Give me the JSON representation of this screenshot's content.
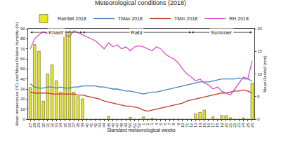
{
  "chart_data": {
    "type": "bar_line",
    "title": "Meteorological conditions (2018)",
    "x_label": "Standard meteorological weeks",
    "y_label": "Mean temperature (°C) and Mean Relative humidity (%)",
    "y2_label": "Mean Rainfall (mm)",
    "categories": [
      "27",
      "28",
      "29",
      "30",
      "31",
      "32",
      "33",
      "34",
      "35",
      "36",
      "37",
      "38",
      "39",
      "40",
      "41",
      "42",
      "43",
      "44",
      "45",
      "46",
      "47",
      "48",
      "49",
      "50",
      "51",
      "52",
      "1",
      "2",
      "3",
      "4",
      "5",
      "6",
      "7",
      "8",
      "9",
      "10",
      "11",
      "12",
      "13",
      "14",
      "15",
      "16",
      "17",
      "18",
      "19",
      "20",
      "21",
      "22",
      "23",
      "24",
      "25",
      "26"
    ],
    "series": [
      {
        "name": "Rainfall 2018",
        "type": "bar",
        "axis": "y2",
        "color": "#e8e81c",
        "values": [
          7,
          16.5,
          15,
          4,
          10,
          12,
          8.5,
          6,
          19.5,
          19.5,
          6,
          5,
          4.5,
          0,
          0,
          0,
          0,
          0,
          0.6,
          0,
          0,
          0,
          0,
          0.4,
          0,
          0,
          0.5,
          0,
          0.2,
          0,
          0,
          0,
          0,
          0,
          0,
          0,
          0,
          0,
          1.2,
          1.5,
          2,
          0,
          0.5,
          0,
          0.8,
          0.8,
          0.3,
          0,
          0,
          0.3,
          0,
          8
        ]
      },
      {
        "name": "TMax 2018",
        "type": "line",
        "color": "#3f7fc0",
        "values": [
          35,
          32,
          31,
          31,
          32,
          32,
          31,
          32,
          31,
          31,
          32,
          32,
          33,
          33,
          33,
          33,
          32,
          32,
          31,
          30,
          30,
          29,
          28,
          28,
          27,
          26,
          25,
          26,
          27,
          27,
          28,
          29,
          30,
          31,
          32,
          33,
          34,
          35,
          36,
          37,
          37,
          37,
          38,
          39,
          40,
          40,
          40,
          40,
          41,
          40,
          40,
          38
        ]
      },
      {
        "name": "TMin 2018",
        "type": "line",
        "color": "#c0392b",
        "values": [
          27,
          26,
          26,
          26,
          26,
          25,
          25,
          25,
          25,
          25,
          25,
          24,
          24,
          23,
          22,
          21,
          20,
          18,
          17,
          16,
          15,
          14,
          13,
          13,
          12,
          11,
          9,
          8,
          9,
          10,
          11,
          12,
          13,
          14,
          15,
          16,
          18,
          19,
          20,
          21,
          22,
          23,
          24,
          25,
          26,
          26,
          27,
          28,
          28,
          29,
          28,
          26
        ]
      },
      {
        "name": "RH 2018",
        "type": "line",
        "color": "#d94fd1",
        "values": [
          70,
          80,
          84,
          87,
          85,
          82,
          83,
          86,
          84,
          82,
          88,
          86,
          84,
          82,
          80,
          78,
          74,
          70,
          76,
          72,
          74,
          70,
          72,
          68,
          72,
          73,
          72,
          70,
          68,
          72,
          70,
          65,
          62,
          60,
          56,
          50,
          45,
          42,
          38,
          40,
          36,
          34,
          30,
          32,
          28,
          26,
          24,
          30,
          36,
          42,
          40,
          58
        ]
      }
    ],
    "ylim": [
      0,
      90
    ],
    "yticks": [
      0,
      10,
      20,
      30,
      40,
      50,
      60,
      70,
      80,
      90
    ],
    "y2lim": [
      0,
      20
    ],
    "y2ticks": [
      0,
      5,
      10,
      15,
      20
    ],
    "legend": "top",
    "grid": false,
    "annotations": [
      {
        "text": "Kharif",
        "from": "27",
        "to": "39"
      },
      {
        "text": "Rabi",
        "from": "39",
        "to": "12"
      },
      {
        "text": "Summer",
        "from": "12",
        "to": "26"
      }
    ]
  }
}
